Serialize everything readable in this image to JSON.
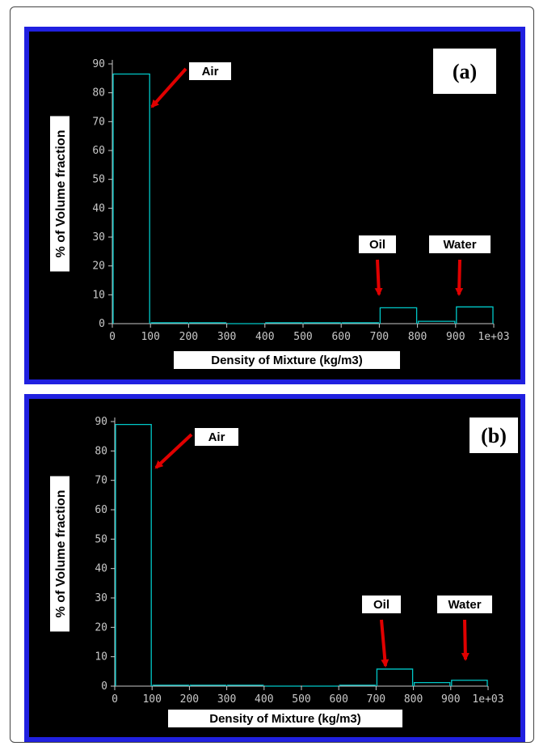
{
  "colors": {
    "border": "#2020e0",
    "background": "#000000",
    "bars": "#00c8c8",
    "axis": "#c8c8c8",
    "arrow": "#e00000",
    "label_box": "#ffffff"
  },
  "chart_data": [
    {
      "type": "bar",
      "panel_label": "(a)",
      "xlabel": "Density of Mixture (kg/m3)",
      "ylabel": "% of Volume fraction",
      "xlim": [
        0,
        1000
      ],
      "ylim": [
        0,
        90
      ],
      "xticks": [
        "0",
        "100",
        "200",
        "300",
        "400",
        "500",
        "600",
        "700",
        "800",
        "900",
        "1e+03"
      ],
      "yticks": [
        "0",
        "10",
        "20",
        "30",
        "40",
        "50",
        "60",
        "70",
        "80",
        "90"
      ],
      "bins": [
        {
          "x0": 0,
          "x1": 100,
          "value": 86.5
        },
        {
          "x0": 100,
          "x1": 200,
          "value": 0.3
        },
        {
          "x0": 200,
          "x1": 300,
          "value": 0.3
        },
        {
          "x0": 300,
          "x1": 400,
          "value": 0
        },
        {
          "x0": 400,
          "x1": 500,
          "value": 0.3
        },
        {
          "x0": 500,
          "x1": 600,
          "value": 0.3
        },
        {
          "x0": 600,
          "x1": 700,
          "value": 0.3
        },
        {
          "x0": 700,
          "x1": 800,
          "value": 5.5
        },
        {
          "x0": 800,
          "x1": 900,
          "value": 0.8
        },
        {
          "x0": 900,
          "x1": 1000,
          "value": 5.8
        }
      ],
      "annotations": [
        {
          "text": "Air",
          "target_x": 120,
          "target_y": 75
        },
        {
          "text": "Oil",
          "target_x": 750,
          "target_y": 9
        },
        {
          "text": "Water",
          "target_x": 950,
          "target_y": 9
        }
      ]
    },
    {
      "type": "bar",
      "panel_label": "(b)",
      "xlabel": "Density of Mixture (kg/m3)",
      "ylabel": "% of Volume fraction",
      "xlim": [
        0,
        1000
      ],
      "ylim": [
        0,
        90
      ],
      "xticks": [
        "0",
        "100",
        "200",
        "300",
        "400",
        "500",
        "600",
        "700",
        "800",
        "900",
        "1e+03"
      ],
      "yticks": [
        "0",
        "10",
        "20",
        "30",
        "40",
        "50",
        "60",
        "70",
        "80",
        "90"
      ],
      "bins": [
        {
          "x0": 0,
          "x1": 100,
          "value": 89
        },
        {
          "x0": 100,
          "x1": 200,
          "value": 0.3
        },
        {
          "x0": 200,
          "x1": 300,
          "value": 0.3
        },
        {
          "x0": 300,
          "x1": 400,
          "value": 0.3
        },
        {
          "x0": 400,
          "x1": 500,
          "value": 0
        },
        {
          "x0": 500,
          "x1": 600,
          "value": 0
        },
        {
          "x0": 600,
          "x1": 700,
          "value": 0.3
        },
        {
          "x0": 700,
          "x1": 800,
          "value": 5.8
        },
        {
          "x0": 800,
          "x1": 900,
          "value": 1.2
        },
        {
          "x0": 900,
          "x1": 1000,
          "value": 2
        }
      ],
      "annotations": [
        {
          "text": "Air",
          "target_x": 110,
          "target_y": 72
        },
        {
          "text": "Oil",
          "target_x": 740,
          "target_y": 7
        },
        {
          "text": "Water",
          "target_x": 940,
          "target_y": 3
        }
      ]
    }
  ]
}
